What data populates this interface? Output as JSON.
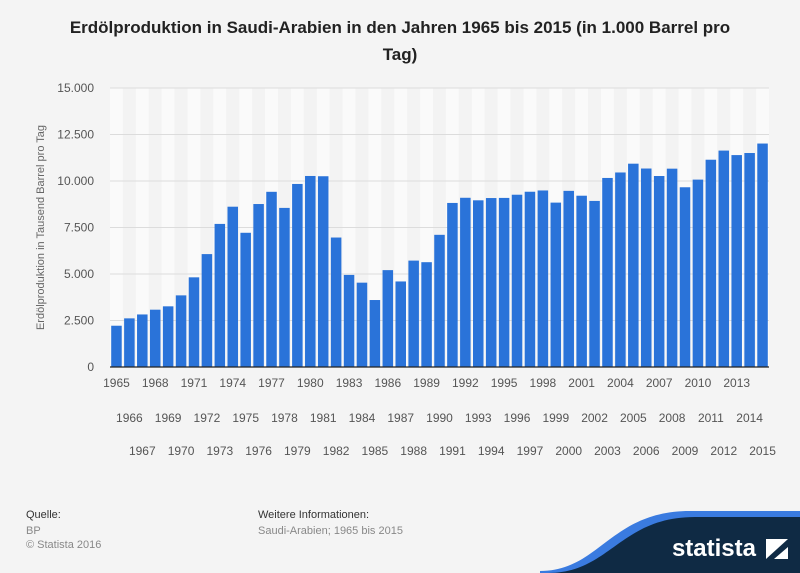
{
  "title": "Erdölproduktion in Saudi-Arabien in den Jahren 1965 bis 2015 (in 1.000 Barrel pro Tag)",
  "chart_data": {
    "type": "bar",
    "title": "Erdölproduktion in Saudi-Arabien in den Jahren 1965 bis 2015 (in 1.000 Barrel pro Tag)",
    "xlabel": "",
    "ylabel": "Erdölproduktion in Tausend Barrel pro Tag",
    "ylim": [
      0,
      15000
    ],
    "yticks": [
      "0",
      "2.500",
      "5.000",
      "7.500",
      "10.000",
      "12.500",
      "15.000"
    ],
    "grid": true,
    "bar_color": "#2a73d9",
    "categories": [
      "1965",
      "1966",
      "1967",
      "1968",
      "1969",
      "1970",
      "1971",
      "1972",
      "1973",
      "1974",
      "1975",
      "1976",
      "1977",
      "1978",
      "1979",
      "1980",
      "1981",
      "1982",
      "1983",
      "1984",
      "1985",
      "1986",
      "1987",
      "1988",
      "1989",
      "1990",
      "1991",
      "1992",
      "1993",
      "1994",
      "1995",
      "1996",
      "1997",
      "1998",
      "1999",
      "2000",
      "2001",
      "2002",
      "2003",
      "2004",
      "2005",
      "2006",
      "2007",
      "2008",
      "2009",
      "2010",
      "2011",
      "2012",
      "2013",
      "2014",
      "2015"
    ],
    "values": [
      2219,
      2615,
      2825,
      3081,
      3262,
      3851,
      4821,
      6070,
      7693,
      8618,
      7216,
      8762,
      9419,
      8554,
      9841,
      10270,
      10256,
      6961,
      4951,
      4534,
      3601,
      5208,
      4599,
      5720,
      5635,
      7106,
      8820,
      9098,
      8962,
      9084,
      9091,
      9262,
      9423,
      9491,
      8838,
      9470,
      9209,
      8928,
      10164,
      10458,
      10931,
      10671,
      10268,
      10663,
      9663,
      10075,
      11144,
      11635,
      11393,
      11505,
      12014
    ]
  },
  "footer": {
    "source_label": "Quelle:",
    "source": "BP",
    "copyright": "© Statista 2016",
    "info_label": "Weitere Informationen:",
    "info": "Saudi-Arabien; 1965 bis 2015",
    "logo": "statista"
  }
}
